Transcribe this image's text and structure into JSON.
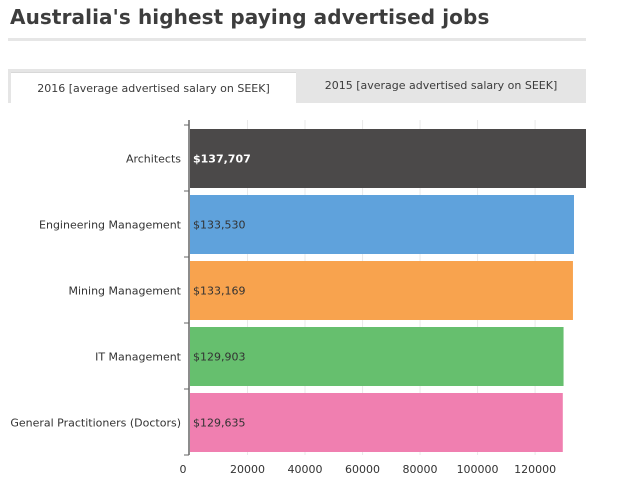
{
  "title": "Australia's highest paying advertised jobs",
  "tabs": [
    {
      "label": "2016 [average advertised salary on SEEK]",
      "active": true
    },
    {
      "label": "2015 [average advertised salary on SEEK]",
      "active": false
    }
  ],
  "colors": {
    "grid": "#e9e9e9",
    "axis": "#666666"
  },
  "chart_data": {
    "type": "bar",
    "orientation": "horizontal",
    "categories": [
      "Architects",
      "Engineering Management",
      "Mining Management",
      "IT Management",
      "General Practitioners (Doctors)"
    ],
    "values": [
      137707,
      133530,
      133169,
      129903,
      129635
    ],
    "value_labels": [
      "$137,707",
      "$133,530",
      "$133,169",
      "$129,903",
      "$129,635"
    ],
    "bar_colors": [
      "#4b4949",
      "#5fa2dc",
      "#f8a34e",
      "#66bf6e",
      "#f07fb0"
    ],
    "value_label_colors": [
      "#ffffff",
      "#333333",
      "#333333",
      "#333333",
      "#333333"
    ],
    "x_ticks": [
      "0",
      "20000",
      "40000",
      "60000",
      "80000",
      "100000",
      "120000"
    ],
    "x_tick_values": [
      0,
      20000,
      40000,
      60000,
      80000,
      100000,
      120000
    ],
    "xlim": [
      0,
      137707
    ],
    "grid": true
  }
}
